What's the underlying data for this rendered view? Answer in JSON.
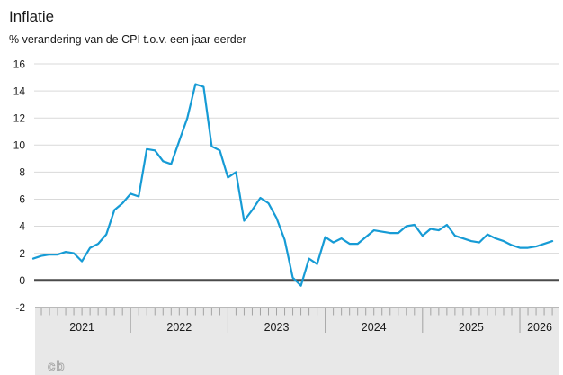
{
  "header": {
    "title": "Inflatie",
    "subtitle": "% verandering van de CPI t.o.v. een jaar eerder"
  },
  "footer": {
    "logo_text": "cb"
  },
  "chart_data": {
    "type": "line",
    "title": "Inflatie",
    "subtitle": "% verandering van de CPI t.o.v. een jaar eerder",
    "unit": "% change of CPI vs one year earlier",
    "x_start": "2021-01",
    "x_end": "2026-05",
    "x_year_labels": [
      "2021",
      "2022",
      "2023",
      "2024",
      "2025",
      "2026"
    ],
    "y_tick_labels": [
      "16",
      "14",
      "12",
      "10",
      "8",
      "6",
      "4",
      "2",
      "0",
      "-2"
    ],
    "y_ticks": [
      16,
      14,
      12,
      10,
      8,
      6,
      4,
      2,
      0,
      -2
    ],
    "ylim": [
      -2,
      16
    ],
    "grid": "horizontal",
    "zero_line": true,
    "legend": "none",
    "line_color": "#169bd5",
    "axis_band_color": "#e8e8e8",
    "series": [
      {
        "name": "Inflatie (CPI, % t.o.v. een jaar eerder)",
        "monthly_values_from_2021_01": [
          1.6,
          1.8,
          1.9,
          1.9,
          2.1,
          2.0,
          1.4,
          2.4,
          2.7,
          3.4,
          5.2,
          5.7,
          6.4,
          6.2,
          9.7,
          9.6,
          8.8,
          8.6,
          10.3,
          12.0,
          14.5,
          14.3,
          9.9,
          9.6,
          7.6,
          8.0,
          4.4,
          5.2,
          6.1,
          5.7,
          4.6,
          3.0,
          0.2,
          -0.4,
          1.6,
          1.2,
          3.2,
          2.8,
          3.1,
          2.7,
          2.7,
          3.2,
          3.7,
          3.6,
          3.5,
          3.5,
          4.0,
          4.1,
          3.3,
          3.8,
          3.7,
          4.1,
          3.3,
          3.1,
          2.9,
          2.8,
          3.4,
          3.1,
          2.9,
          2.6,
          2.4,
          2.4,
          2.5,
          2.7,
          2.9
        ]
      }
    ]
  }
}
